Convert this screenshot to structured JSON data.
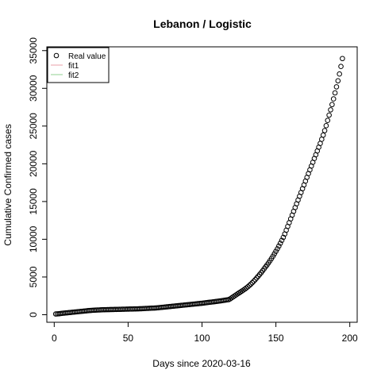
{
  "chart_data": {
    "type": "scatter",
    "title": "Lebanon / Logistic",
    "xlabel": "Days since 2020-03-16",
    "ylabel": "Cumulative Confirmed cases",
    "xlim": [
      -5,
      205
    ],
    "ylim": [
      -1000,
      35500
    ],
    "xticks": [
      0,
      50,
      100,
      150,
      200
    ],
    "yticks": [
      0,
      5000,
      10000,
      15000,
      20000,
      25000,
      30000,
      35000
    ],
    "legend": {
      "position": "top-left",
      "entries": [
        {
          "label": "Real value",
          "symbol": "circle",
          "color": "#000000"
        },
        {
          "label": "fit1",
          "symbol": "line",
          "color": "#e8a0a8"
        },
        {
          "label": "fit2",
          "symbol": "line",
          "color": "#90d090"
        }
      ]
    },
    "series": [
      {
        "name": "Real value",
        "marker": "open-circle",
        "color": "#000000",
        "x_start": 1,
        "x_step": 1,
        "y": [
          100,
          110,
          125,
          150,
          175,
          200,
          220,
          240,
          260,
          280,
          300,
          320,
          340,
          360,
          380,
          400,
          420,
          440,
          460,
          480,
          500,
          520,
          540,
          560,
          575,
          590,
          600,
          610,
          620,
          630,
          640,
          650,
          660,
          665,
          670,
          675,
          680,
          685,
          690,
          695,
          700,
          705,
          710,
          715,
          720,
          725,
          730,
          735,
          740,
          745,
          750,
          755,
          760,
          765,
          770,
          775,
          780,
          790,
          800,
          810,
          820,
          830,
          840,
          850,
          860,
          870,
          880,
          890,
          905,
          920,
          940,
          960,
          980,
          1000,
          1020,
          1040,
          1060,
          1080,
          1100,
          1120,
          1140,
          1160,
          1180,
          1200,
          1220,
          1240,
          1260,
          1280,
          1300,
          1320,
          1340,
          1360,
          1380,
          1400,
          1420,
          1440,
          1460,
          1480,
          1500,
          1520,
          1545,
          1570,
          1595,
          1620,
          1645,
          1670,
          1695,
          1720,
          1745,
          1770,
          1795,
          1820,
          1850,
          1880,
          1910,
          1940,
          1970,
          2000,
          2100,
          2230,
          2360,
          2490,
          2620,
          2750,
          2880,
          3010,
          3140,
          3270,
          3400,
          3550,
          3700,
          3870,
          4050,
          4240,
          4440,
          4650,
          4870,
          5100,
          5330,
          5570,
          5820,
          6080,
          6340,
          6600,
          6870,
          7160,
          7450,
          7750,
          8070,
          8400,
          8740,
          9100,
          9470,
          9850,
          10250,
          10700,
          11200,
          11700,
          12200,
          12700,
          13200,
          13700,
          14200,
          14700,
          15200,
          15700,
          16200,
          16700,
          17200,
          17700,
          18200,
          18700,
          19200,
          19700,
          20200,
          20700,
          21200,
          21700,
          22200,
          22700,
          23250,
          23800,
          24400,
          25050,
          25750,
          26450,
          27150,
          27850,
          28600,
          29400,
          30200,
          31000,
          31900,
          32900,
          33950
        ]
      }
    ]
  }
}
